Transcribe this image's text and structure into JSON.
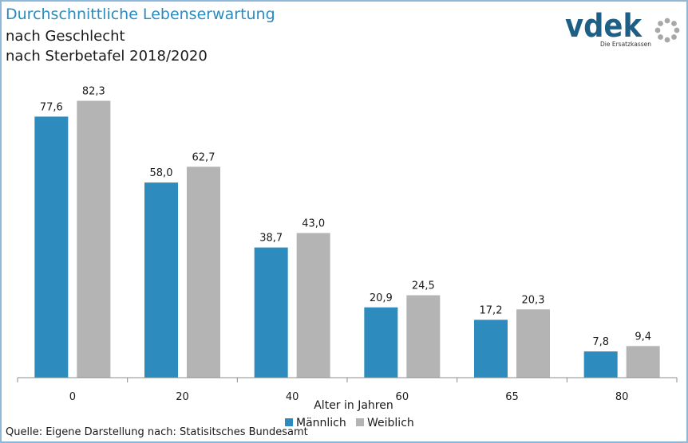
{
  "title": {
    "line1": "Durchschnittliche Lebenserwartung",
    "line2": "nach Geschlecht",
    "line3": "nach Sterbetafel 2018/2020"
  },
  "logo": {
    "brand": "vdek",
    "tagline": "Die Ersatzkassen"
  },
  "source": "Quelle: Eigene Darstellung nach: Statisitsches Bundesamt",
  "colors": {
    "male": "#2e8bbd",
    "female": "#b4b4b4",
    "title_accent": "#2a8bbf",
    "axis": "#8c8c8c"
  },
  "chart_data": {
    "type": "bar",
    "categories": [
      "0",
      "20",
      "40",
      "60",
      "65",
      "80"
    ],
    "series": [
      {
        "name": "Männlich",
        "values": [
          77.6,
          58.0,
          38.7,
          20.9,
          17.2,
          7.8
        ],
        "labels": [
          "77,6",
          "58,0",
          "38,7",
          "20,9",
          "17,2",
          "7,8"
        ]
      },
      {
        "name": "Weiblich",
        "values": [
          82.3,
          62.7,
          43.0,
          24.5,
          20.3,
          9.4
        ],
        "labels": [
          "82,3",
          "62,7",
          "43,0",
          "24,5",
          "20,3",
          "9,4"
        ]
      }
    ],
    "xlabel": "Alter in Jahren",
    "ylabel": "",
    "ylim": [
      0,
      90
    ],
    "grid": false,
    "legend": "bottom"
  }
}
